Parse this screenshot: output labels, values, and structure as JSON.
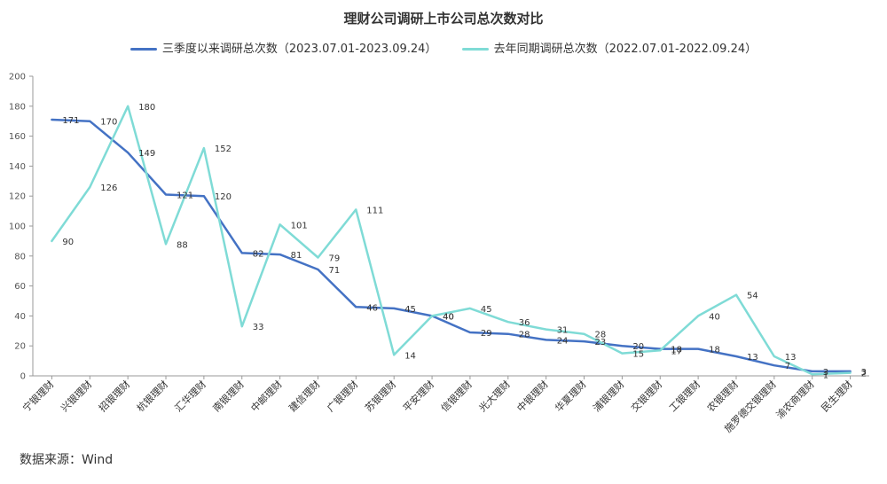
{
  "chart_data": {
    "type": "line",
    "title": "理财公司调研上市公司总次数对比",
    "categories": [
      "宁银理财",
      "兴银理财",
      "招银理财",
      "杭银理财",
      "汇华理财",
      "南银理财",
      "中邮理财",
      "建信理财",
      "广银理财",
      "苏银理财",
      "平安理财",
      "信银理财",
      "光大理财",
      "中银理财",
      "华夏理财",
      "浦银理财",
      "交银理财",
      "工银理财",
      "农银理财",
      "施罗德交银理财",
      "渝农商理财",
      "民生理财"
    ],
    "series": [
      {
        "name": "三季度以来调研总次数（2023.07.01-2023.09.24）",
        "color": "#4472c4",
        "values": [
          171,
          170,
          149,
          121,
          120,
          82,
          81,
          71,
          46,
          45,
          40,
          29,
          28,
          24,
          23,
          20,
          18,
          18,
          13,
          7,
          3,
          3
        ]
      },
      {
        "name": "去年同期调研总次数（2022.07.01-2022.09.24）",
        "color": "#7fdbd6",
        "values": [
          90,
          126,
          180,
          88,
          152,
          33,
          101,
          79,
          111,
          14,
          40,
          45,
          36,
          31,
          28,
          15,
          17,
          40,
          54,
          13,
          1,
          2
        ]
      }
    ],
    "ylim": [
      0,
      200
    ],
    "yticks": [
      0,
      20,
      40,
      60,
      80,
      100,
      120,
      140,
      160,
      180,
      200
    ],
    "xlabel": "",
    "ylabel": "",
    "grid": false,
    "legend": "top"
  },
  "source_note": "数据来源：Wind"
}
